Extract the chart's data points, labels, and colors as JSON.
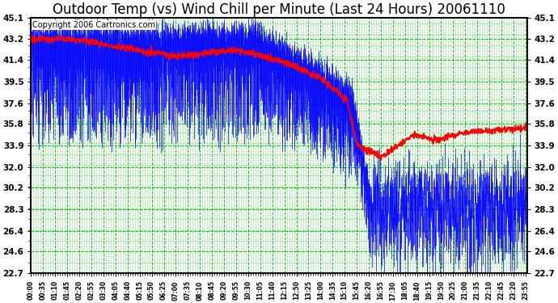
{
  "title": "Outdoor Temp (vs) Wind Chill per Minute (Last 24 Hours) 20061110",
  "copyright": "Copyright 2006 Cartronics.com",
  "yticks": [
    45.1,
    43.2,
    41.4,
    39.5,
    37.6,
    35.8,
    33.9,
    32.0,
    30.2,
    28.3,
    26.4,
    24.6,
    22.7
  ],
  "ymin": 22.7,
  "ymax": 45.1,
  "bg_color": "#ffffff",
  "plot_bg_color": "#ffffff",
  "grid_color": "#00cc00",
  "temp_color": "#0000ff",
  "windchill_color": "#ff0000",
  "title_fontsize": 12,
  "copyright_fontsize": 7
}
